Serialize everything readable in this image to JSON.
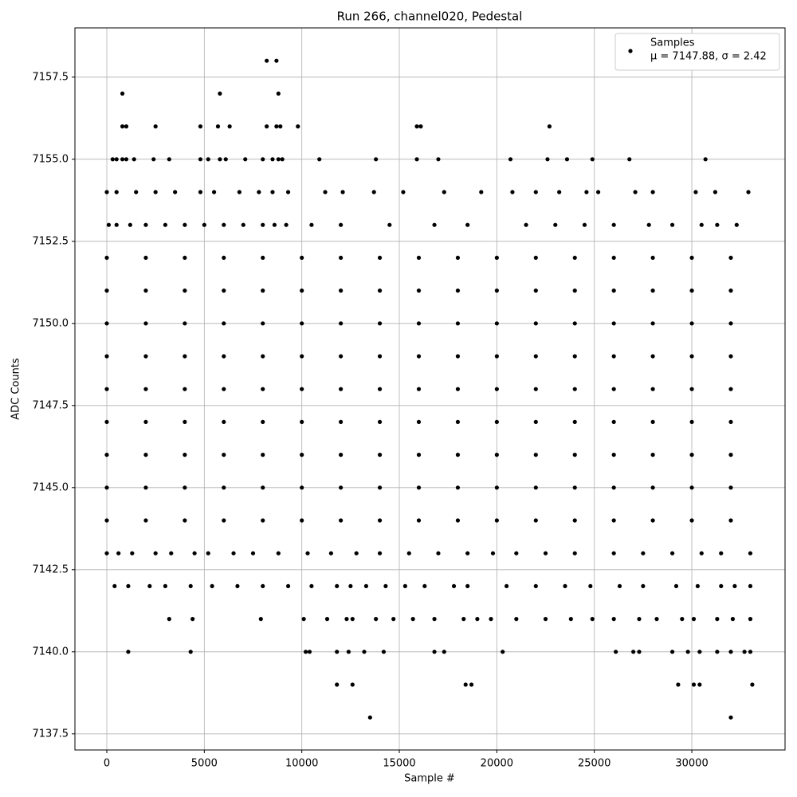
{
  "chart_data": {
    "type": "scatter",
    "title": "Run 266, channel020, Pedestal",
    "xlabel": "Sample #",
    "ylabel": "ADC Counts",
    "xlim": [
      -1635,
      34780
    ],
    "ylim": [
      7137.01,
      7159.0
    ],
    "xticks": [
      0,
      5000,
      10000,
      15000,
      20000,
      25000,
      30000
    ],
    "yticks": [
      7137.5,
      {
        "value": 7140,
        "label": "7140.0"
      },
      7142.5,
      {
        "value": 7145,
        "label": "7145.0"
      },
      7147.5,
      {
        "value": 7150,
        "label": "7150.0"
      },
      7152.5,
      {
        "value": 7155,
        "label": "7155.0"
      },
      7157.5
    ],
    "grid": true,
    "legend": "upper right",
    "series": [
      {
        "name": "Samples",
        "stats": "μ = 7147.88, σ = 2.42",
        "color": "#000000",
        "x": [
          0,
          2000,
          4000,
          6000,
          8000,
          10000,
          12000,
          14000,
          16000,
          18000,
          20000,
          22000,
          24000,
          26000,
          28000,
          30000,
          32000,
          0,
          2000,
          4000,
          6000,
          8000,
          10000,
          12000,
          14000,
          16000,
          18000,
          20000,
          22000,
          24000,
          26000,
          28000,
          30000,
          32000,
          0,
          2000,
          4000,
          6000,
          8000,
          10000,
          12000,
          14000,
          16000,
          18000,
          20000,
          22000,
          24000,
          26000,
          28000,
          30000,
          32000,
          0,
          2000,
          4000,
          6000,
          8000,
          10000,
          12000,
          14000,
          16000,
          18000,
          20000,
          22000,
          24000,
          26000,
          28000,
          30000,
          32000,
          0,
          2000,
          4000,
          6000,
          8000,
          10000,
          12000,
          14000,
          16000,
          18000,
          20000,
          22000,
          24000,
          26000,
          28000,
          30000,
          32000,
          0,
          2000,
          4000,
          6000,
          8000,
          10000,
          12000,
          14000,
          16000,
          18000,
          20000,
          22000,
          24000,
          26000,
          28000,
          30000,
          32000,
          0,
          2000,
          4000,
          6000,
          8000,
          10000,
          12000,
          14000,
          16000,
          18000,
          20000,
          22000,
          24000,
          26000,
          28000,
          30000,
          32000,
          0,
          2000,
          4000,
          6000,
          8000,
          10000,
          12000,
          14000,
          16000,
          18000,
          20000,
          22000,
          24000,
          26000,
          28000,
          30000,
          32000,
          0,
          2000,
          4000,
          6000,
          8000,
          10000,
          12000,
          14000,
          16000,
          18000,
          20000,
          22000,
          24000,
          26000,
          28000,
          30000,
          32000,
          100,
          500,
          1200,
          2000,
          3000,
          4000,
          5000,
          6000,
          7000,
          8000,
          8600,
          9200,
          10500,
          12000,
          14500,
          16800,
          18500,
          21500,
          23000,
          24500,
          26000,
          27800,
          29000,
          30500,
          31300,
          32300,
          0,
          500,
          1500,
          2500,
          3500,
          4800,
          5500,
          6800,
          7800,
          8500,
          9300,
          11200,
          12100,
          13700,
          15200,
          17300,
          19200,
          20800,
          22000,
          23200,
          24600,
          25200,
          27100,
          28000,
          30200,
          31200,
          32900,
          0,
          600,
          1300,
          2500,
          3300,
          4500,
          5200,
          6500,
          7500,
          8800,
          10300,
          11500,
          12800,
          14000,
          15500,
          17000,
          18500,
          19800,
          21000,
          22500,
          24000,
          26000,
          27500,
          29000,
          30500,
          31500,
          33000,
          400,
          1100,
          2200,
          3000,
          4300,
          5400,
          6700,
          8000,
          9300,
          10500,
          11800,
          12500,
          13300,
          14300,
          15300,
          16300,
          17800,
          18500,
          20500,
          22000,
          23500,
          24800,
          26300,
          27500,
          29200,
          30300,
          31500,
          32200,
          33000,
          3200,
          4400,
          7900,
          10100,
          11300,
          12300,
          12600,
          13800,
          14700,
          15700,
          16800,
          18300,
          19000,
          19700,
          21000,
          22500,
          23800,
          24900,
          26000,
          27300,
          28200,
          29500,
          30100,
          31300,
          32100,
          33000,
          1100,
          4300,
          10200,
          10400,
          11800,
          12400,
          13200,
          14200,
          16800,
          17300,
          20300,
          26100,
          27000,
          27300,
          29000,
          29800,
          30400,
          31300,
          32000,
          32700,
          33000,
          11800,
          12600,
          18400,
          18700,
          29300,
          30100,
          30400,
          33100,
          13500,
          32000,
          300,
          500,
          800,
          1000,
          1400,
          2400,
          3200,
          4800,
          5200,
          5800,
          6100,
          7100,
          8000,
          8500,
          8800,
          9000,
          10900,
          13800,
          15900,
          17000,
          20700,
          22600,
          23600,
          24900,
          26800,
          30700,
          800,
          1000,
          2500,
          4800,
          5700,
          6300,
          8200,
          8700,
          8900,
          9800,
          15900,
          16100,
          22700,
          800,
          5800,
          8800,
          8200,
          8700
        ],
        "values": [
          7144,
          7144,
          7144,
          7144,
          7144,
          7144,
          7144,
          7144,
          7144,
          7144,
          7144,
          7144,
          7144,
          7144,
          7144,
          7144,
          7144,
          7145,
          7145,
          7145,
          7145,
          7145,
          7145,
          7145,
          7145,
          7145,
          7145,
          7145,
          7145,
          7145,
          7145,
          7145,
          7145,
          7145,
          7146,
          7146,
          7146,
          7146,
          7146,
          7146,
          7146,
          7146,
          7146,
          7146,
          7146,
          7146,
          7146,
          7146,
          7146,
          7146,
          7146,
          7147,
          7147,
          7147,
          7147,
          7147,
          7147,
          7147,
          7147,
          7147,
          7147,
          7147,
          7147,
          7147,
          7147,
          7147,
          7147,
          7147,
          7148,
          7148,
          7148,
          7148,
          7148,
          7148,
          7148,
          7148,
          7148,
          7148,
          7148,
          7148,
          7148,
          7148,
          7148,
          7148,
          7148,
          7149,
          7149,
          7149,
          7149,
          7149,
          7149,
          7149,
          7149,
          7149,
          7149,
          7149,
          7149,
          7149,
          7149,
          7149,
          7149,
          7149,
          7150,
          7150,
          7150,
          7150,
          7150,
          7150,
          7150,
          7150,
          7150,
          7150,
          7150,
          7150,
          7150,
          7150,
          7150,
          7150,
          7150,
          7151,
          7151,
          7151,
          7151,
          7151,
          7151,
          7151,
          7151,
          7151,
          7151,
          7151,
          7151,
          7151,
          7151,
          7151,
          7151,
          7151,
          7152,
          7152,
          7152,
          7152,
          7152,
          7152,
          7152,
          7152,
          7152,
          7152,
          7152,
          7152,
          7152,
          7152,
          7152,
          7152,
          7152,
          7153,
          7153,
          7153,
          7153,
          7153,
          7153,
          7153,
          7153,
          7153,
          7153,
          7153,
          7153,
          7153,
          7153,
          7153,
          7153,
          7153,
          7153,
          7153,
          7153,
          7153,
          7153,
          7153,
          7153,
          7153,
          7153,
          7154,
          7154,
          7154,
          7154,
          7154,
          7154,
          7154,
          7154,
          7154,
          7154,
          7154,
          7154,
          7154,
          7154,
          7154,
          7154,
          7154,
          7154,
          7154,
          7154,
          7154,
          7154,
          7154,
          7154,
          7154,
          7154,
          7154,
          7143,
          7143,
          7143,
          7143,
          7143,
          7143,
          7143,
          7143,
          7143,
          7143,
          7143,
          7143,
          7143,
          7143,
          7143,
          7143,
          7143,
          7143,
          7143,
          7143,
          7143,
          7143,
          7143,
          7143,
          7143,
          7143,
          7143,
          7142,
          7142,
          7142,
          7142,
          7142,
          7142,
          7142,
          7142,
          7142,
          7142,
          7142,
          7142,
          7142,
          7142,
          7142,
          7142,
          7142,
          7142,
          7142,
          7142,
          7142,
          7142,
          7142,
          7142,
          7142,
          7142,
          7142,
          7142,
          7142,
          7141,
          7141,
          7141,
          7141,
          7141,
          7141,
          7141,
          7141,
          7141,
          7141,
          7141,
          7141,
          7141,
          7141,
          7141,
          7141,
          7141,
          7141,
          7141,
          7141,
          7141,
          7141,
          7141,
          7141,
          7141,
          7141,
          7140,
          7140,
          7140,
          7140,
          7140,
          7140,
          7140,
          7140,
          7140,
          7140,
          7140,
          7140,
          7140,
          7140,
          7140,
          7140,
          7140,
          7140,
          7140,
          7140,
          7140,
          7139,
          7139,
          7139,
          7139,
          7139,
          7139,
          7139,
          7139,
          7138,
          7138,
          7155,
          7155,
          7155,
          7155,
          7155,
          7155,
          7155,
          7155,
          7155,
          7155,
          7155,
          7155,
          7155,
          7155,
          7155,
          7155,
          7155,
          7155,
          7155,
          7155,
          7155,
          7155,
          7155,
          7155,
          7155,
          7155,
          7156,
          7156,
          7156,
          7156,
          7156,
          7156,
          7156,
          7156,
          7156,
          7156,
          7156,
          7156,
          7156,
          7157,
          7157,
          7157,
          7158,
          7158
        ]
      }
    ]
  }
}
